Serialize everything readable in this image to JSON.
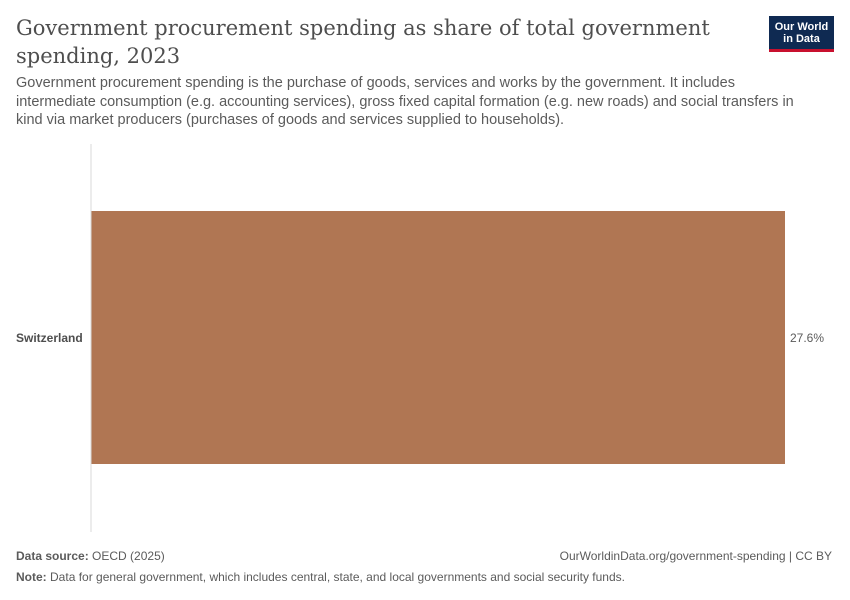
{
  "header": {
    "title": "Government procurement spending as share of total government spending, 2023",
    "subtitle": "Government procurement spending is the purchase of goods, services and works by the government. It includes intermediate consumption (e.g. accounting services), gross fixed capital formation (e.g. new roads) and social transfers in kind via market producers (purchases of goods and services supplied to households).",
    "logo_line1": "Our World",
    "logo_line2": "in Data"
  },
  "chart_data": {
    "type": "bar",
    "orientation": "horizontal",
    "categories": [
      "Switzerland"
    ],
    "values": [
      27.6
    ],
    "value_labels": [
      "27.6%"
    ],
    "unit": "%",
    "bar_color": "#b07653",
    "xlim": [
      0,
      27.6
    ],
    "grid": false
  },
  "footer": {
    "source_label": "Data source:",
    "source_text": "OECD (2025)",
    "url": "OurWorldinData.org/government-spending | CC BY",
    "note_label": "Note:",
    "note_text": "Data for general government, which includes central, state, and local governments and social security funds."
  }
}
